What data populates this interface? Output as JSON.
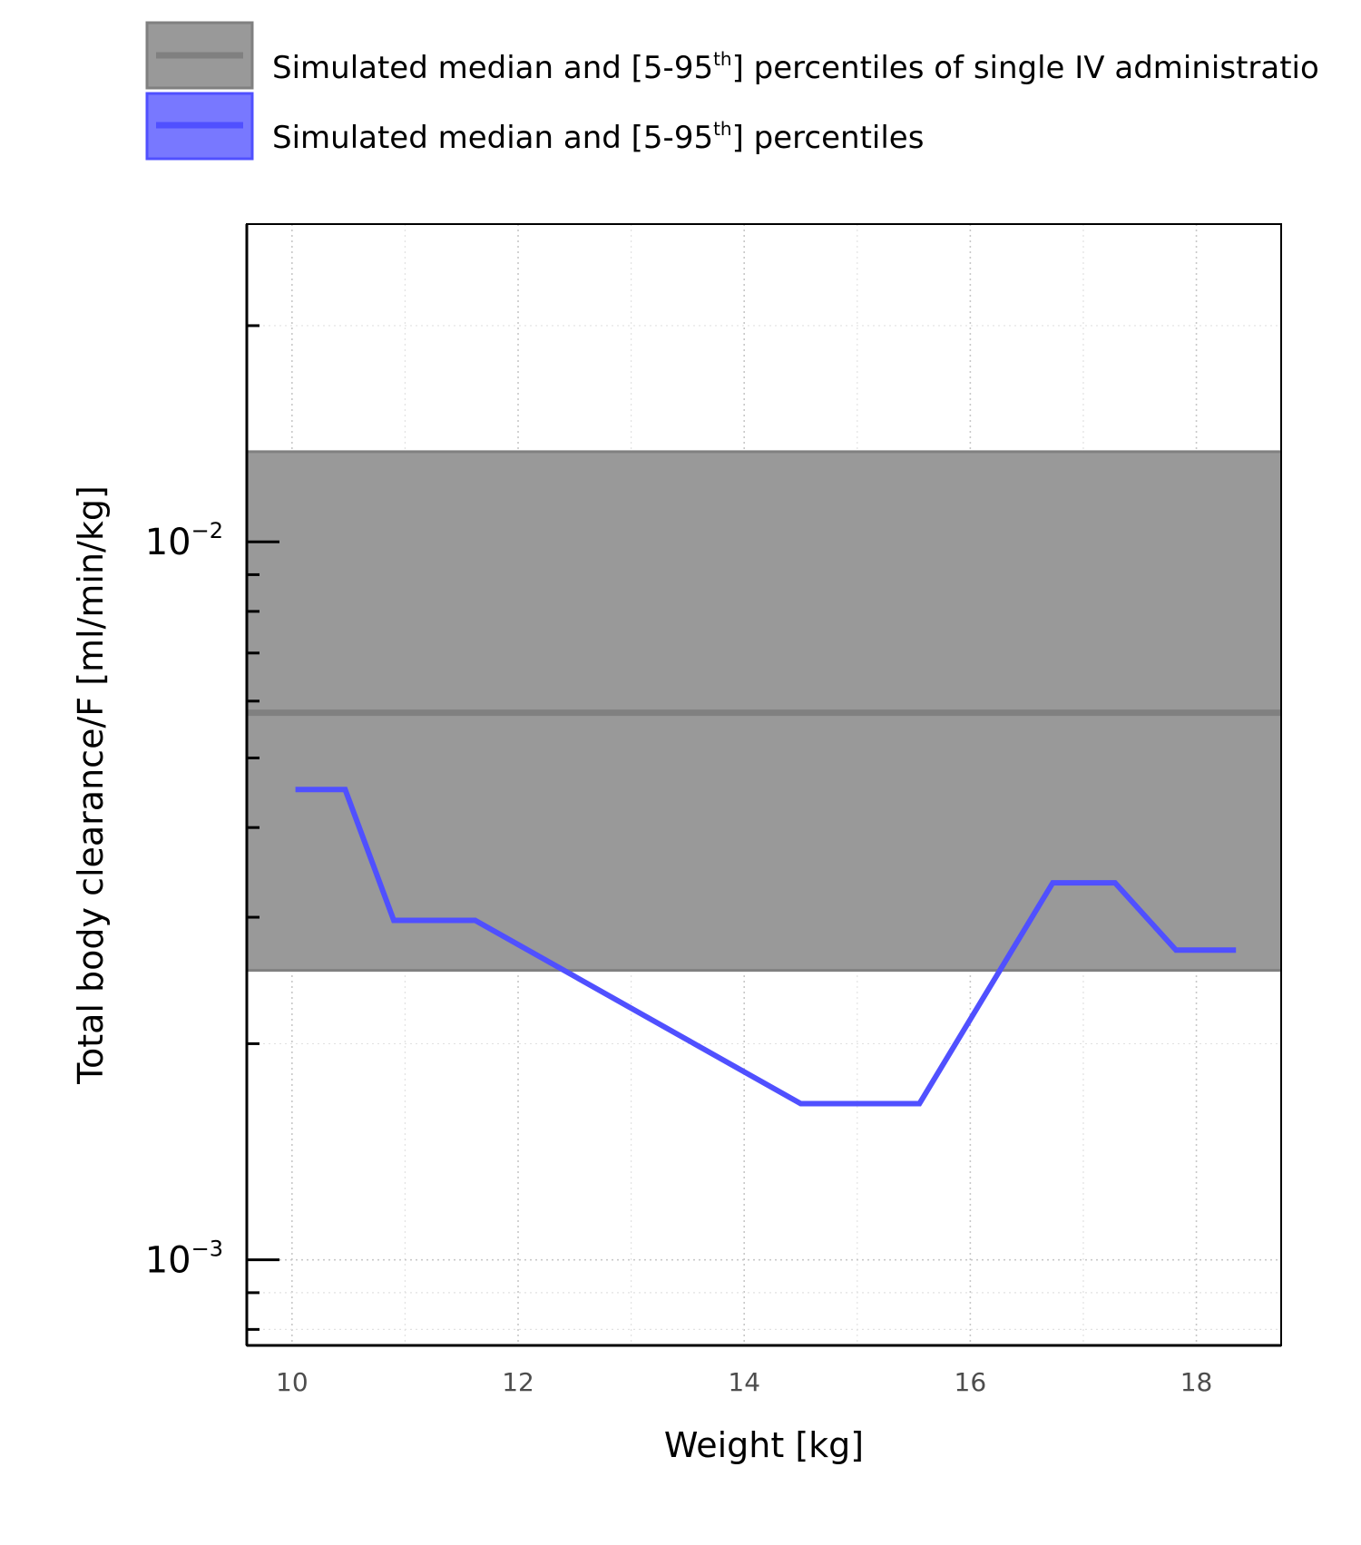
{
  "legend": {
    "items": [
      {
        "label_pre": "Simulated median and [5-95",
        "label_sup": "th",
        "label_post": "] percentiles of single IV administratio",
        "color": "#808080",
        "fill": "#999999"
      },
      {
        "label_pre": "Simulated median and [5-95",
        "label_sup": "th",
        "label_post": "] percentiles",
        "color": "#5050ff",
        "fill": "#7878ff"
      }
    ]
  },
  "axes": {
    "xlabel": "Weight [kg]",
    "ylabel": "Total body clearance/F [ml/min/kg]",
    "x_ticks": [
      "10",
      "12",
      "14",
      "16",
      "18"
    ],
    "y_tick_labels": [
      {
        "base": "10",
        "exp": "−2"
      },
      {
        "base": "10",
        "exp": "−3"
      }
    ]
  },
  "chart_data": {
    "type": "line",
    "title": "",
    "xlabel": "Weight [kg]",
    "ylabel": "Total body clearance/F [ml/min/kg]",
    "xlim": [
      9.6,
      18.75
    ],
    "ylim": [
      0.00076,
      0.0277
    ],
    "yscale": "log",
    "grid": true,
    "legend_position": "top",
    "reference_band": {
      "name": "Simulated median and [5-95th] percentiles of single IV administratio",
      "median": 0.00578,
      "p5": 0.00253,
      "p95": 0.01335,
      "color": "#808080"
    },
    "series": [
      {
        "name": "Simulated median and [5-95th] percentiles",
        "color": "#5050ff",
        "x": [
          10.03,
          10.47,
          10.9,
          11.62,
          14.5,
          15.55,
          16.73,
          17.28,
          17.82,
          18.35
        ],
        "y": [
          0.00452,
          0.00452,
          0.00297,
          0.00297,
          0.00165,
          0.00165,
          0.00335,
          0.00335,
          0.0027,
          0.0027
        ]
      }
    ]
  }
}
